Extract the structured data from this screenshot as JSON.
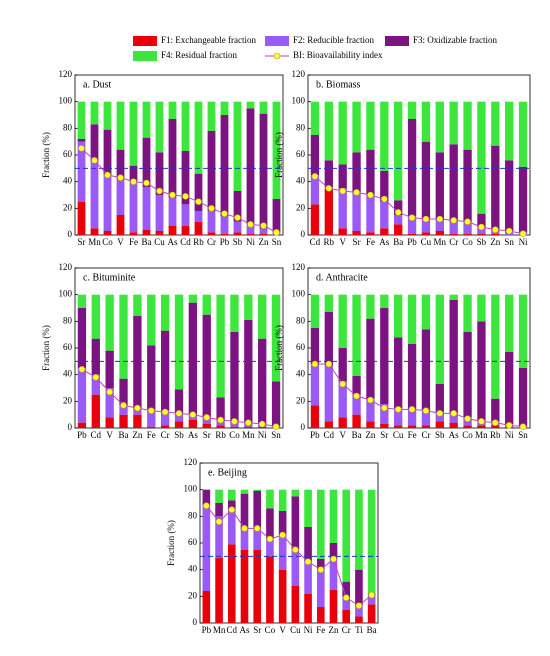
{
  "chart_data": [
    {
      "type": "bar",
      "stacked": true,
      "title": "a. Dust",
      "ylabel": "Fraction (%)",
      "categories": [
        "Sr",
        "Mn",
        "Co",
        "V",
        "Fe",
        "Ba",
        "Cu",
        "As",
        "Cd",
        "Rb",
        "Cr",
        "Pb",
        "Sb",
        "Ni",
        "Zn",
        "Sn"
      ],
      "series": [
        {
          "name": "F1: Exchangeable fraction",
          "color": "#e8000b",
          "values": [
            25,
            5,
            3,
            15,
            2,
            4,
            3,
            7,
            7,
            10,
            2,
            1,
            2,
            1,
            1,
            0
          ]
        },
        {
          "name": "F2: Reducible fraction",
          "color": "#9b59f5",
          "values": [
            45,
            50,
            42,
            27,
            38,
            32,
            27,
            21,
            16,
            8,
            16,
            13,
            8,
            7,
            4,
            2
          ]
        },
        {
          "name": "F3: Oxidizable fraction",
          "color": "#7b1481",
          "values": [
            2,
            28,
            34,
            22,
            12,
            37,
            32,
            59,
            40,
            28,
            60,
            76,
            23,
            87,
            86,
            25
          ]
        },
        {
          "name": "F4: Residual fraction",
          "color": "#3ce63c",
          "values": [
            28,
            17,
            21,
            36,
            48,
            27,
            38,
            13,
            37,
            54,
            22,
            10,
            67,
            5,
            9,
            73
          ]
        },
        {
          "name": "BI: Bioavailability index",
          "type": "line",
          "color": "#c040c0",
          "marker_color": "#ffff33",
          "values": [
            65,
            56,
            45,
            43,
            40,
            39,
            33,
            30,
            29,
            25,
            20,
            16,
            13,
            8,
            7,
            2
          ]
        }
      ],
      "ylim": [
        0,
        120
      ],
      "yticks": [
        0,
        20,
        40,
        60,
        80,
        100,
        120
      ],
      "hline": 50,
      "hline_color": "#2233cc"
    },
    {
      "type": "bar",
      "stacked": true,
      "title": "b. Biomass",
      "ylabel": "Fraction (%)",
      "categories": [
        "Cd",
        "Rb",
        "V",
        "Sr",
        "Fe",
        "As",
        "Ba",
        "Pb",
        "Cu",
        "Mn",
        "Cr",
        "Co",
        "Sb",
        "Zn",
        "Sn",
        "Ni"
      ],
      "series": [
        {
          "color": "#e8000b",
          "values": [
            23,
            35,
            5,
            3,
            2,
            5,
            8,
            1,
            2,
            3,
            1,
            1,
            1,
            1,
            0,
            0
          ]
        },
        {
          "color": "#9b59f5",
          "values": [
            22,
            1,
            30,
            29,
            28,
            20,
            7,
            13,
            10,
            9,
            9,
            9,
            5,
            3,
            3,
            2
          ]
        },
        {
          "color": "#7b1481",
          "values": [
            30,
            20,
            18,
            30,
            34,
            23,
            11,
            73,
            58,
            50,
            58,
            54,
            10,
            63,
            53,
            49
          ]
        },
        {
          "color": "#3ce63c",
          "values": [
            25,
            44,
            47,
            38,
            36,
            52,
            74,
            13,
            30,
            38,
            32,
            36,
            84,
            33,
            44,
            49
          ]
        },
        {
          "type": "line",
          "color": "#c040c0",
          "marker_color": "#ffff33",
          "values": [
            44,
            35,
            33,
            32,
            30,
            27,
            17,
            13,
            12,
            12,
            11,
            10,
            6,
            4,
            3,
            1
          ]
        }
      ],
      "ylim": [
        0,
        120
      ],
      "yticks": [
        0,
        20,
        40,
        60,
        80,
        100,
        120
      ],
      "hline": 50,
      "hline_color": "#2233cc"
    },
    {
      "type": "bar",
      "stacked": true,
      "title": "c. Bituminite",
      "ylabel": "Fraction (%)",
      "categories": [
        "Pb",
        "Cd",
        "V",
        "Ba",
        "Zn",
        "Fe",
        "Cr",
        "Sb",
        "As",
        "Sr",
        "Rb",
        "Co",
        "Mn",
        "Ni",
        "Sn"
      ],
      "series": [
        {
          "color": "#e8000b",
          "values": [
            4,
            25,
            8,
            10,
            10,
            1,
            2,
            5,
            6,
            3,
            2,
            1,
            1,
            1,
            0
          ]
        },
        {
          "color": "#9b59f5",
          "values": [
            41,
            15,
            22,
            7,
            5,
            13,
            11,
            6,
            4,
            5,
            4,
            4,
            3,
            2,
            1
          ]
        },
        {
          "color": "#7b1481",
          "values": [
            45,
            27,
            28,
            20,
            69,
            48,
            60,
            18,
            84,
            77,
            17,
            67,
            77,
            64,
            34
          ]
        },
        {
          "color": "#3ce63c",
          "values": [
            10,
            33,
            42,
            63,
            16,
            38,
            27,
            71,
            6,
            15,
            77,
            28,
            19,
            33,
            65
          ]
        },
        {
          "type": "line",
          "color": "#c040c0",
          "marker_color": "#ffff33",
          "values": [
            44,
            38,
            27,
            17,
            15,
            13,
            12,
            11,
            10,
            8,
            6,
            5,
            4,
            3,
            1
          ]
        }
      ],
      "ylim": [
        0,
        120
      ],
      "yticks": [
        0,
        20,
        40,
        60,
        80,
        100,
        120
      ],
      "hline": 50,
      "hline_color": "#2233cc"
    },
    {
      "type": "bar",
      "stacked": true,
      "title": "d. Anthracite",
      "ylabel": "Fraction (%)",
      "categories": [
        "Pb",
        "Cd",
        "V",
        "Ba",
        "Zn",
        "Sr",
        "Cu",
        "Fe",
        "Cr",
        "Sb",
        "As",
        "Co",
        "Mn",
        "Rb",
        "Ni",
        "Sn"
      ],
      "series": [
        {
          "color": "#e8000b",
          "values": [
            17,
            5,
            8,
            10,
            5,
            3,
            2,
            2,
            2,
            5,
            4,
            2,
            2,
            2,
            1,
            0
          ]
        },
        {
          "color": "#9b59f5",
          "values": [
            31,
            42,
            27,
            15,
            17,
            15,
            13,
            12,
            11,
            7,
            7,
            6,
            4,
            3,
            2,
            1
          ]
        },
        {
          "color": "#7b1481",
          "values": [
            27,
            40,
            25,
            14,
            60,
            72,
            53,
            49,
            61,
            21,
            85,
            64,
            74,
            17,
            54,
            44
          ]
        },
        {
          "color": "#3ce63c",
          "values": [
            25,
            13,
            40,
            61,
            18,
            10,
            32,
            37,
            26,
            67,
            4,
            28,
            20,
            78,
            43,
            55
          ]
        },
        {
          "type": "line",
          "color": "#c040c0",
          "marker_color": "#ffff33",
          "values": [
            48,
            48,
            33,
            24,
            21,
            15,
            14,
            14,
            13,
            11,
            11,
            7,
            5,
            4,
            2,
            1
          ]
        }
      ],
      "ylim": [
        0,
        120
      ],
      "yticks": [
        0,
        20,
        40,
        60,
        80,
        100,
        120
      ],
      "hline": 50,
      "hline_color": "#2233cc"
    },
    {
      "type": "bar",
      "stacked": true,
      "title": "e. Beijing",
      "ylabel": "Fraction (%)",
      "categories": [
        "Pb",
        "Mn",
        "Cd",
        "As",
        "Sr",
        "Co",
        "V",
        "Cu",
        "Ni",
        "Fe",
        "Zn",
        "Cr",
        "Ti",
        "Ba"
      ],
      "series": [
        {
          "color": "#e8000b",
          "values": [
            24,
            49,
            59,
            55,
            55,
            50,
            40,
            28,
            22,
            12,
            25,
            10,
            5,
            14
          ]
        },
        {
          "color": "#9b59f5",
          "values": [
            64,
            31,
            26,
            15,
            16,
            13,
            26,
            27,
            24,
            28,
            23,
            9,
            8,
            7
          ]
        },
        {
          "color": "#7b1481",
          "values": [
            12,
            10,
            7,
            27,
            28,
            23,
            18,
            40,
            26,
            8,
            12,
            12,
            27,
            1
          ]
        },
        {
          "color": "#3ce63c",
          "values": [
            0,
            10,
            8,
            3,
            1,
            14,
            16,
            5,
            28,
            52,
            40,
            69,
            60,
            78
          ]
        },
        {
          "type": "line",
          "color": "#c040c0",
          "marker_color": "#ffff33",
          "values": [
            88,
            76,
            85,
            71,
            71,
            63,
            66,
            55,
            46,
            40,
            48,
            19,
            13,
            21
          ]
        }
      ],
      "ylim": [
        0,
        120
      ],
      "yticks": [
        0,
        20,
        40,
        60,
        80,
        100,
        120
      ],
      "hline": 50,
      "hline_color": "#2233cc"
    }
  ]
}
